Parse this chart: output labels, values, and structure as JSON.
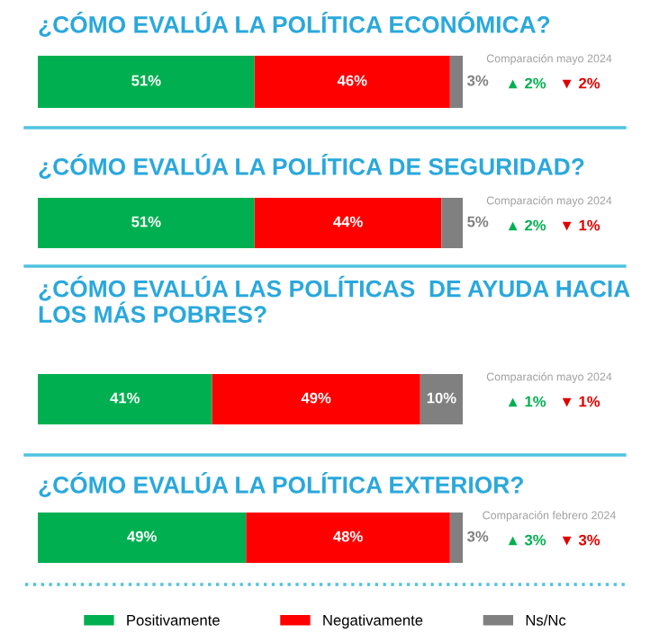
{
  "chart_data": [
    {
      "type": "bar",
      "orientation": "horizontal",
      "stacked": true,
      "title": "¿CÓMO EVALÚA LA POLÍTICA ECONÓMICA?",
      "categories": [
        null
      ],
      "tick_labels": false,
      "legend": "bottom",
      "series": [
        {
          "name": "Positivamente",
          "color": "#00b050",
          "values": [
            51
          ],
          "value_labels": [
            "51%"
          ]
        },
        {
          "name": "Negativamente",
          "color": "#ff0000",
          "values": [
            46
          ],
          "value_labels": [
            "46%"
          ]
        },
        {
          "name": "Ns/Nc",
          "color": "#808080",
          "values": [
            3
          ],
          "value_labels": [
            "3%"
          ]
        }
      ],
      "annotations": [
        "Comparación mayo 2024",
        "▲ 2%",
        "▼ 2%"
      ]
    },
    {
      "type": "bar",
      "orientation": "horizontal",
      "stacked": true,
      "title": "¿CÓMO EVALÚA LA POLÍTICA DE SEGURIDAD?",
      "categories": [
        null
      ],
      "tick_labels": false,
      "series": [
        {
          "color": "#00b050",
          "values": [
            51
          ],
          "value_labels": [
            "51%"
          ]
        },
        {
          "color": "#ff0000",
          "values": [
            44
          ],
          "value_labels": [
            "44%"
          ]
        },
        {
          "color": "#808080",
          "values": [
            5
          ],
          "value_labels": [
            "5%"
          ]
        }
      ],
      "annotations": [
        "Comparación mayo 2024",
        "▲ 2%",
        "▼ 1%"
      ]
    },
    {
      "type": "bar",
      "orientation": "horizontal",
      "stacked": true,
      "title": "¿CÓMO EVALÚA LAS POLÍTICAS  DE AYUDA HACIA LOS MÁS POBRES?",
      "categories": [
        null
      ],
      "tick_labels": false,
      "series": [
        {
          "color": "#00b050",
          "values": [
            41
          ],
          "value_labels": [
            "41%"
          ]
        },
        {
          "color": "#ff0000",
          "values": [
            49
          ],
          "value_labels": [
            "49%"
          ]
        },
        {
          "color": "#808080",
          "values": [
            10
          ],
          "value_labels": [
            "10%"
          ]
        }
      ],
      "annotations": [
        "Comparación mayo 2024",
        "▲ 1%",
        "▼ 1%"
      ]
    },
    {
      "type": "bar",
      "orientation": "horizontal",
      "stacked": true,
      "title": "¿CÓMO EVALÚA LA POLÍTICA EXTERIOR?",
      "categories": [
        null
      ],
      "tick_labels": false,
      "series": [
        {
          "color": "#00b050",
          "values": [
            49
          ],
          "value_labels": [
            "49%"
          ]
        },
        {
          "color": "#ff0000",
          "values": [
            48
          ],
          "value_labels": [
            "48%"
          ]
        },
        {
          "color": "#808080",
          "values": [
            3
          ],
          "value_labels": [
            "3%"
          ]
        }
      ],
      "annotations": [
        "Comparación febrero 2024",
        "▲ 3%",
        "▼ 3%"
      ]
    }
  ]
}
